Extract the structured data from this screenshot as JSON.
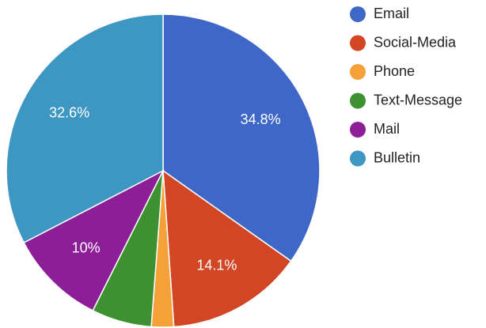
{
  "chart_data": {
    "type": "pie",
    "categories": [
      "Email",
      "Social-Media",
      "Phone",
      "Text-Message",
      "Mail",
      "Bulletin"
    ],
    "values": [
      34.8,
      14.1,
      2.3,
      6.2,
      10,
      32.6
    ],
    "value_labels": [
      "34.8%",
      "14.1%",
      null,
      null,
      "10%",
      "32.6%"
    ],
    "colors": [
      "#3f67c8",
      "#d24625",
      "#f6a03a",
      "#3d9130",
      "#8c1f97",
      "#3d97c2"
    ],
    "legend": "right"
  }
}
